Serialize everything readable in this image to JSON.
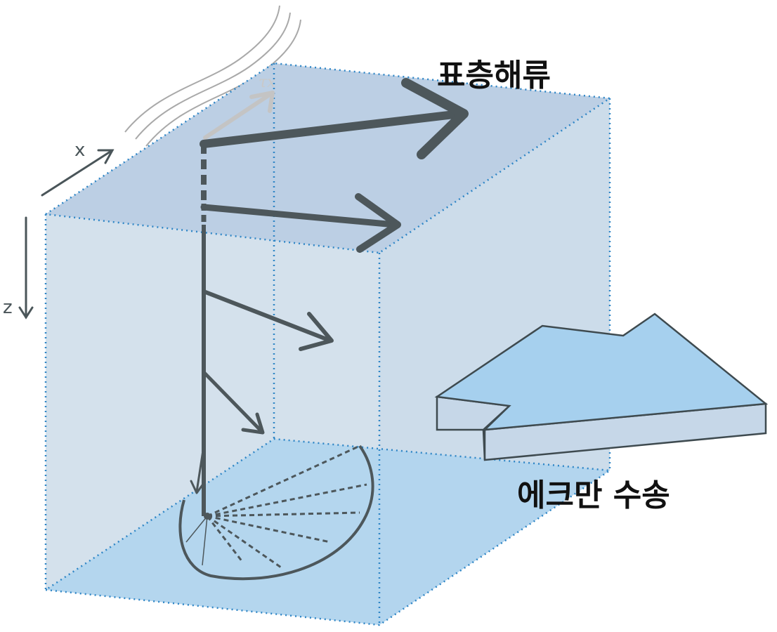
{
  "labels": {
    "surface_current": "표층해류",
    "ekman_transport": "에크만 수송",
    "x_axis": "x",
    "z_axis": "z",
    "wind_stress": "τx"
  },
  "colors": {
    "top_face": "#bccfe4",
    "side_face": "#d4e1ec",
    "bottom_face": "#aed4ee",
    "dotted_edge": "#2f86c6",
    "arrow": "#4d575b",
    "wind_stress_arrow": "#c4c4c4",
    "wind_lines": "#a9a9a9",
    "transport_top": "#a6d0ee",
    "transport_side": "#c6d7e8"
  },
  "spiral": {
    "arrow_count": 5,
    "projection_rays": 8
  }
}
